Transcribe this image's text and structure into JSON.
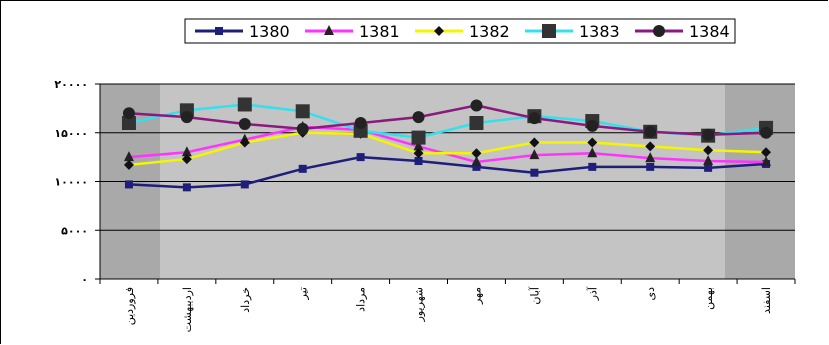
{
  "chart_data": {
    "type": "line",
    "categories": [
      "فروردین",
      "اردیبهشت",
      "خرداد",
      "تیر",
      "مرداد",
      "شهریور",
      "مهر",
      "آبان",
      "آذر",
      "دی",
      "بهمن",
      "اسفند"
    ],
    "ylim": [
      0,
      20000
    ],
    "yticks": [
      0,
      5000,
      10000,
      15000,
      20000
    ],
    "ytick_labels": [
      "۰",
      "۵۰۰۰",
      "۱۰۰۰۰",
      "۱۵۰۰۰",
      "۲۰۰۰۰"
    ],
    "grid": "horizontal",
    "legend_position": "top",
    "series": [
      {
        "name": "1380",
        "color": "#1f1f7a",
        "marker": "square-small",
        "values": [
          9700,
          9400,
          9700,
          11300,
          12500,
          12100,
          11500,
          10900,
          11500,
          11500,
          11400,
          11800
        ]
      },
      {
        "name": "1381",
        "color": "#ff33ff",
        "marker": "triangle",
        "values": [
          12500,
          13000,
          14300,
          15600,
          15300,
          13600,
          12000,
          12700,
          12900,
          12400,
          12100,
          12000
        ]
      },
      {
        "name": "1382",
        "color": "#f5f500",
        "marker": "diamond",
        "values": [
          11700,
          12300,
          14000,
          15000,
          14900,
          12900,
          12900,
          14000,
          14000,
          13600,
          13200,
          13000
        ]
      },
      {
        "name": "1383",
        "color": "#33e0ee",
        "marker": "square-big",
        "values": [
          16000,
          17300,
          17900,
          17200,
          15200,
          14500,
          16000,
          16700,
          16200,
          15100,
          14700,
          15500
        ]
      },
      {
        "name": "1384",
        "color": "#8b1a7f",
        "marker": "circle",
        "values": [
          17000,
          16600,
          15900,
          15400,
          16000,
          16600,
          17800,
          16500,
          15700,
          15100,
          14800,
          15000
        ]
      }
    ]
  }
}
